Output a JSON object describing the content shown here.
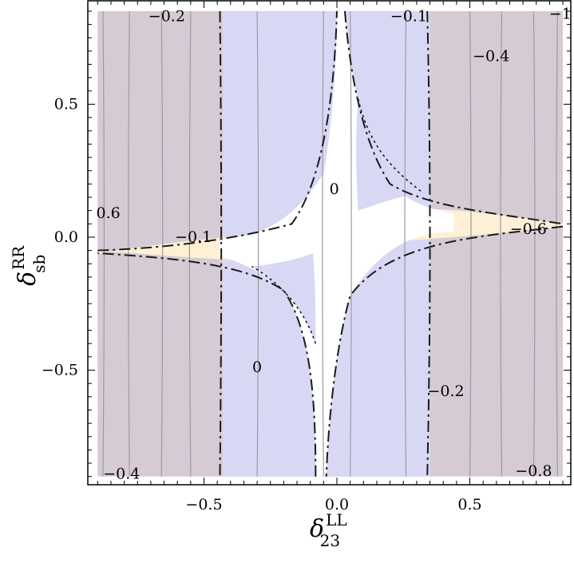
{
  "chart_data": {
    "type": "contour",
    "x_label": {
      "main": "δ",
      "sup": "LL",
      "sub": "23"
    },
    "y_label": {
      "main": "δ",
      "sup": "RR",
      "sub": "sb"
    },
    "xlim": [
      -0.9,
      0.85
    ],
    "ylim": [
      -0.9,
      0.85
    ],
    "x_ticks": [
      {
        "value": -0.5,
        "label": "−0.5"
      },
      {
        "value": 0.0,
        "label": "0.0"
      },
      {
        "value": 0.5,
        "label": "0.5"
      }
    ],
    "y_ticks": [
      {
        "value": 0.5,
        "label": "0.5"
      },
      {
        "value": 0.0,
        "label": "0.0"
      },
      {
        "value": -0.5,
        "label": "−0.5"
      }
    ],
    "regions": [
      {
        "name": "outer",
        "color": "#d6cbd4"
      },
      {
        "name": "band",
        "color": "#d8d8f5",
        "x_range": [
          -0.43,
          0.35
        ]
      },
      {
        "name": "allowed",
        "color": "#ffffff"
      },
      {
        "name": "wings",
        "color": "#fdf0d5"
      }
    ],
    "contour_levels_x": [
      -0.88,
      -0.78,
      -0.66,
      -0.55,
      -0.3,
      -0.05,
      0.05,
      0.26,
      0.5,
      0.62,
      0.74,
      0.83
    ],
    "contour_labels": [
      {
        "text": "−0.2",
        "x": -0.64,
        "y": 0.83
      },
      {
        "text": "−0.1",
        "x": 0.27,
        "y": 0.83
      },
      {
        "text": "−1",
        "x": 0.84,
        "y": 0.84
      },
      {
        "text": "−0.4",
        "x": 0.58,
        "y": 0.68
      },
      {
        "text": "0",
        "x": -0.01,
        "y": 0.18
      },
      {
        "text": "0.6",
        "x": -0.86,
        "y": 0.09
      },
      {
        "text": "−0.1",
        "x": -0.54,
        "y": 0.0
      },
      {
        "text": "−0.6",
        "x": 0.72,
        "y": 0.03
      },
      {
        "text": "0",
        "x": -0.3,
        "y": -0.49
      },
      {
        "text": "−0.2",
        "x": 0.41,
        "y": -0.58
      },
      {
        "text": "−0.4",
        "x": -0.81,
        "y": -0.89
      },
      {
        "text": "−0.8",
        "x": 0.74,
        "y": -0.88
      }
    ]
  }
}
